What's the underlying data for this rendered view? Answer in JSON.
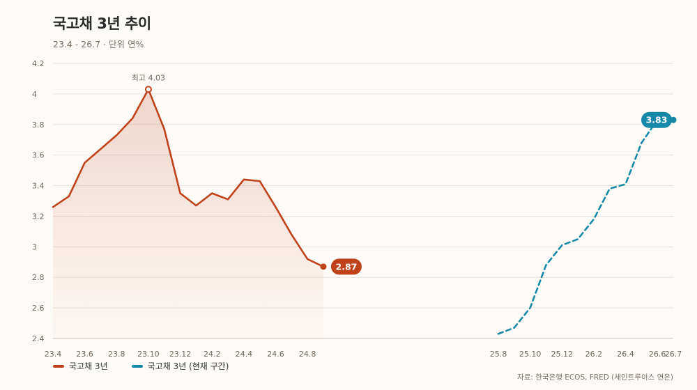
{
  "title": "국고채 3년 추이",
  "subtitle": "23.4 - 26.7 · 단위 연%",
  "source": "자료: 한국은행 ECOS, FRED (세인트루이스 연은)",
  "colors": {
    "historical": "#c0421b",
    "current": "#1789a8",
    "grid": "#e9e4dc",
    "axis": "#c9c2b8",
    "tick": "#6e655b"
  },
  "legend": [
    {
      "label": "국고채 3년",
      "color": "#c0421b",
      "style": "solid"
    },
    {
      "label": "국고채 3년 (현재 구간)",
      "color": "#1789a8",
      "style": "dashed"
    }
  ],
  "chart_data": {
    "type": "line",
    "xlabel": "",
    "ylabel": "",
    "ylim": [
      2.4,
      4.2
    ],
    "yticks": [
      2.4,
      2.6,
      2.8,
      3,
      3.2,
      3.4,
      3.6,
      3.8,
      4,
      4.2
    ],
    "yticklabels": [
      "2.4",
      "2.6",
      "2.8",
      "3",
      "3.2",
      "3.4",
      "3.6",
      "3.8",
      "4",
      "4.2"
    ],
    "xticklabels": [
      "23.4",
      "23.6",
      "23.8",
      "23.10",
      "23.12",
      "24.2",
      "24.4",
      "24.6",
      "24.8",
      "25.8",
      "25.10",
      "25.12",
      "26.2",
      "26.4",
      "26.6",
      "26.7"
    ],
    "grid": true,
    "legend_position": "bottom-left",
    "series": [
      {
        "name": "국고채 3년",
        "style": "solid",
        "area_fill": true,
        "x": [
          "23.4",
          "23.5",
          "23.6",
          "23.7",
          "23.8",
          "23.9",
          "23.10",
          "23.11",
          "23.12",
          "24.1",
          "24.2",
          "24.3",
          "24.4",
          "24.5",
          "24.6",
          "24.7",
          "24.8",
          "24.9"
        ],
        "values": [
          3.26,
          3.33,
          3.55,
          3.64,
          3.73,
          3.84,
          4.03,
          3.77,
          3.35,
          3.27,
          3.35,
          3.31,
          3.44,
          3.43,
          3.26,
          3.08,
          2.92,
          2.87
        ],
        "last_label": "2.87"
      },
      {
        "name": "국고채 3년 (현재 구간)",
        "style": "dashed",
        "x": [
          "25.8",
          "25.9",
          "25.10",
          "25.11",
          "25.12",
          "26.1",
          "26.2",
          "26.3",
          "26.4",
          "26.5",
          "26.6",
          "26.7"
        ],
        "values": [
          2.43,
          2.47,
          2.6,
          2.88,
          3.01,
          3.05,
          3.18,
          3.38,
          3.41,
          3.68,
          3.83,
          3.83
        ],
        "last_label": "3.83"
      }
    ],
    "annotations": [
      {
        "series": 0,
        "x": "23.10",
        "value": 4.03,
        "text": "최고 4.03"
      }
    ]
  }
}
